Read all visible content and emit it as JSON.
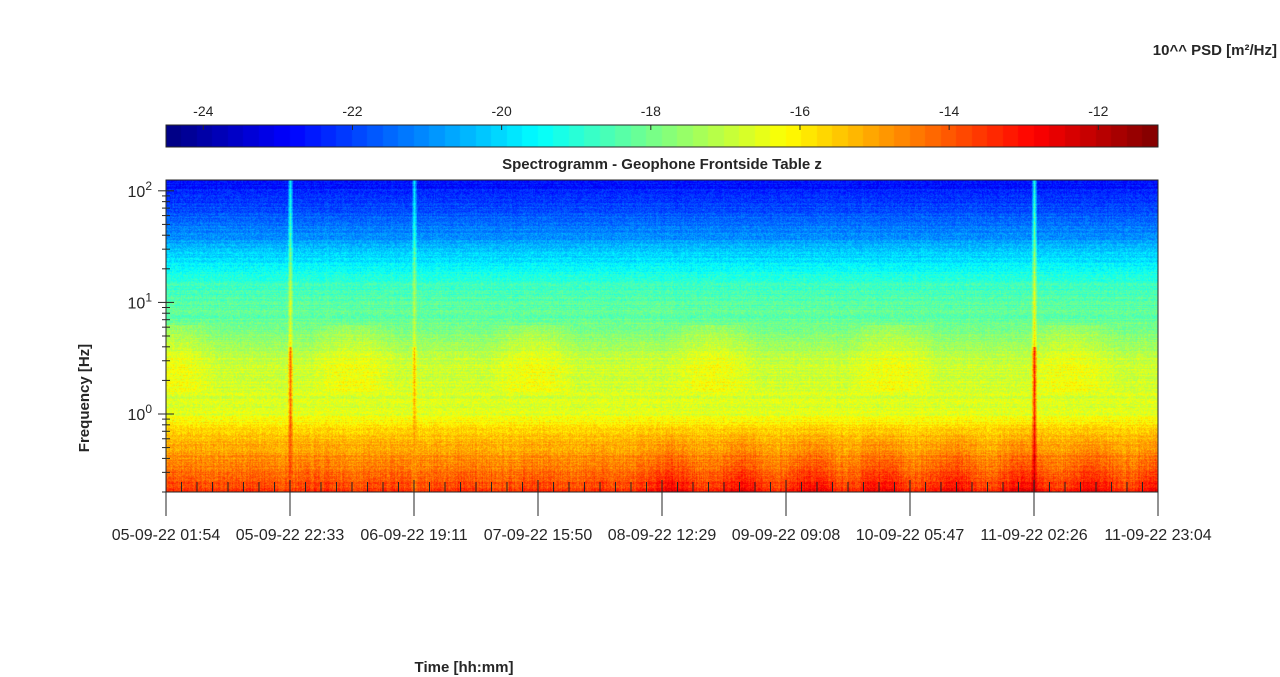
{
  "chart_data": {
    "type": "heatmap",
    "title": "Spectrogramm - Geophone Frontside Table z",
    "xlabel": "Time [hh:mm]",
    "ylabel": "Frequency [Hz]",
    "colorbar_label": "10^^ PSD [m²/Hz]",
    "colormap": "jet",
    "y_scale": "log",
    "ylim": [
      0.2,
      125
    ],
    "y_ticks": [
      {
        "value": 1,
        "base": "10",
        "exp": "0"
      },
      {
        "value": 10,
        "base": "10",
        "exp": "1"
      },
      {
        "value": 100,
        "base": "10",
        "exp": "2"
      }
    ],
    "x_ticks": [
      "05-09-22  01:54",
      "05-09-22  22:33",
      "06-09-22  19:11",
      "07-09-22  15:50",
      "08-09-22  12:29",
      "09-09-22  09:08",
      "10-09-22  05:47",
      "11-09-22  02:26",
      "11-09-22  23:04"
    ],
    "colorbar": {
      "range": [
        -24.5,
        -11.2
      ],
      "ticks": [
        "-24",
        "-22",
        "-20",
        "-18",
        "-16",
        "-14",
        "-12"
      ],
      "tick_values": [
        -24,
        -22,
        -20,
        -18,
        -16,
        -14,
        -12
      ]
    },
    "psd_profile": [
      {
        "freq": 0.2,
        "log_psd": -13.7
      },
      {
        "freq": 0.4,
        "log_psd": -14.8
      },
      {
        "freq": 0.7,
        "log_psd": -15.6
      },
      {
        "freq": 1.0,
        "log_psd": -16.6
      },
      {
        "freq": 3.0,
        "log_psd": -16.9
      },
      {
        "freq": 6.0,
        "log_psd": -18.0
      },
      {
        "freq": 15.0,
        "log_psd": -18.8
      },
      {
        "freq": 40.0,
        "log_psd": -21.0
      },
      {
        "freq": 125.0,
        "log_psd": -22.8
      }
    ],
    "transient_events": [
      {
        "time": "05-09-22  22:33",
        "log_psd_peak": -13.5
      },
      {
        "time": "06-09-22  19:11",
        "log_psd_peak": -15.0
      },
      {
        "time": "11-09-22  02:26",
        "log_psd_peak": -12.5
      }
    ]
  }
}
